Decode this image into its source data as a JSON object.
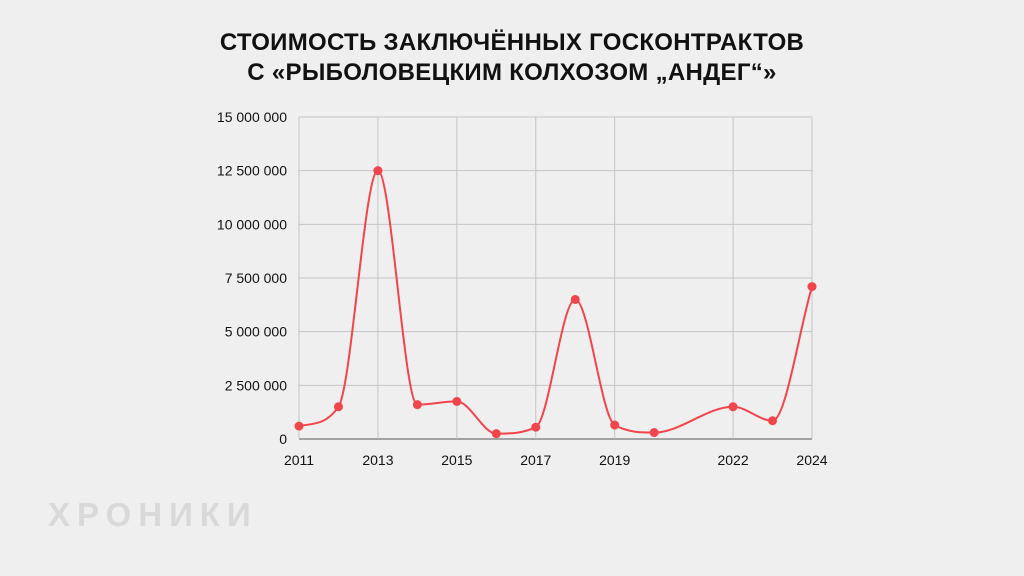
{
  "chart_data": {
    "type": "line",
    "title_lines": [
      "СТОИМОСТЬ ЗАКЛЮЧЁННЫХ ГОСКОНТРАКТОВ",
      "С «РЫБОЛОВЕЦКИМ КОЛХОЗОМ „АНДЕГ“»"
    ],
    "xlabel": "",
    "ylabel": "",
    "x": [
      2011,
      2012,
      2013,
      2014,
      2015,
      2016,
      2017,
      2018,
      2019,
      2020,
      2022,
      2023,
      2024
    ],
    "x_tick_labels": [
      "2011",
      "2013",
      "2015",
      "2017",
      "2019",
      "2022",
      "2024"
    ],
    "y_tick_labels": [
      "0",
      "2 500 000",
      "5 000 000",
      "7 500 000",
      "10 000 000",
      "12 500 000",
      "15 000 000"
    ],
    "ylim": [
      0,
      15000000
    ],
    "series": [
      {
        "values": [
          600000,
          1500000,
          12500000,
          1600000,
          1750000,
          250000,
          550000,
          6500000,
          650000,
          300000,
          1500000,
          850000,
          7100000
        ],
        "color": "#f0454a"
      }
    ],
    "grid": "vertical and horizontal",
    "legend": "none"
  },
  "watermark": "ХРОНИКИ"
}
